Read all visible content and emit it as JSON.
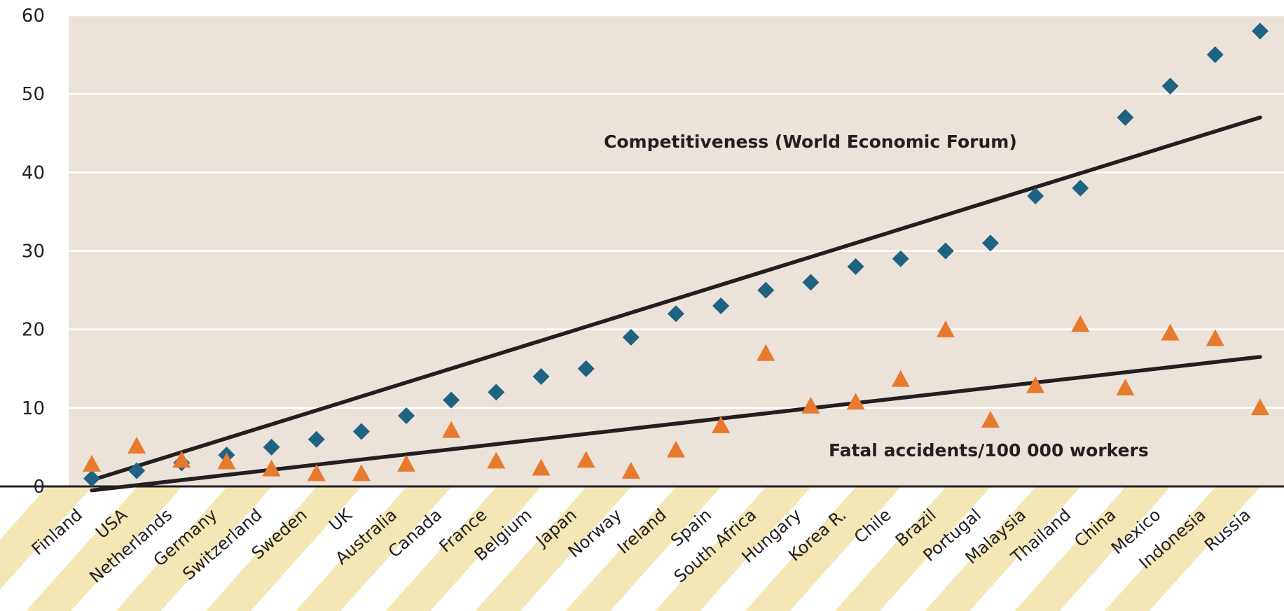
{
  "chart_data": {
    "type": "scatter",
    "categories": [
      "Finland",
      "USA",
      "Netherlands",
      "Germany",
      "Switzerland",
      "Sweden",
      "UK",
      "Australia",
      "Canada",
      "France",
      "Belgium",
      "Japan",
      "Norway",
      "Ireland",
      "Spain",
      "South Africa",
      "Hungary",
      "Korea R.",
      "Chile",
      "Brazil",
      "Portugal",
      "Malaysia",
      "Thailand",
      "China",
      "Mexico",
      "Indonesia",
      "Russia"
    ],
    "ylim": [
      0,
      60
    ],
    "yticks": [
      0,
      10,
      20,
      30,
      40,
      50,
      60
    ],
    "grid": true,
    "colors": {
      "plot_bg": "#ebe2da",
      "band_fill": "#f3e7b5",
      "competitiveness": "#1f6383",
      "fatal": "#e87a2d",
      "trend": "#231f20"
    },
    "series": [
      {
        "name": "Competitiveness (World Economic Forum)",
        "marker": "diamond",
        "values": [
          1,
          2,
          3,
          4,
          5,
          6,
          7,
          9,
          11,
          12,
          14,
          15,
          19,
          22,
          23,
          25,
          26,
          28,
          29,
          30,
          31,
          37,
          38,
          47,
          51,
          55,
          58
        ]
      },
      {
        "name": "Fatal accidents/100 000 workers",
        "marker": "triangle",
        "values": [
          2.7,
          5,
          3.2,
          3,
          2.1,
          1.5,
          1.5,
          2.7,
          7,
          3.1,
          2.2,
          3.2,
          1.8,
          4.5,
          7.6,
          16.8,
          10.1,
          10.6,
          13.5,
          19.8,
          8.3,
          12.7,
          20.5,
          12.4,
          19.4,
          18.7,
          9.9
        ]
      }
    ],
    "trendlines": [
      {
        "series": "Competitiveness (World Economic Forum)",
        "start": 0.8,
        "end": 47
      },
      {
        "series": "Fatal accidents/100 000 workers",
        "start": -0.5,
        "end": 16.5
      }
    ]
  }
}
